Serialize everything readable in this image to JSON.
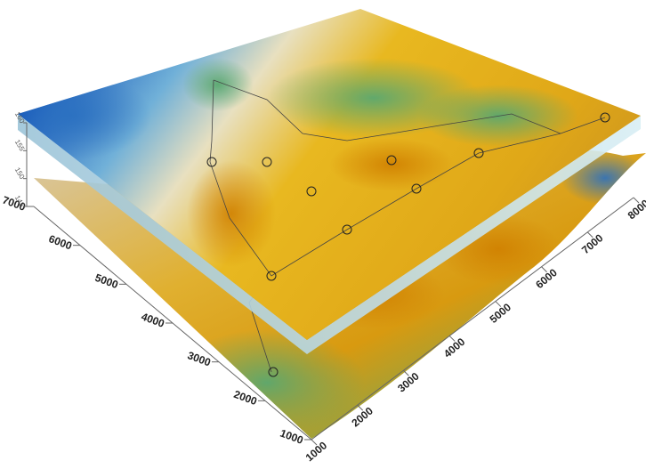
{
  "chart_data": {
    "type": "surface3d",
    "xlim": [
      1000,
      8000
    ],
    "xticks": [
      1000,
      2000,
      3000,
      4000,
      5000,
      6000,
      7000,
      8000
    ],
    "ylim": [
      1000,
      7000
    ],
    "yticks": [
      1000,
      2000,
      3000,
      4000,
      5000,
      6000,
      7000
    ],
    "zlim": [
      145,
      160
    ],
    "zticks": [
      145,
      150,
      155,
      160
    ]
  }
}
